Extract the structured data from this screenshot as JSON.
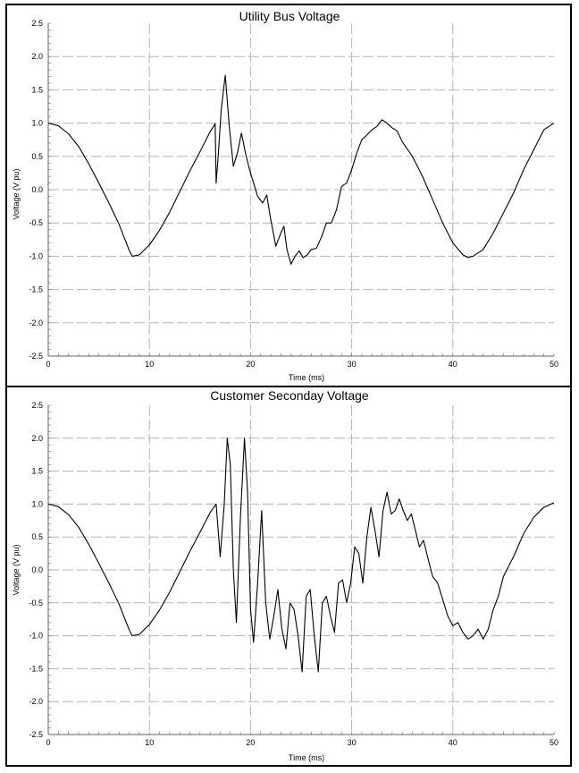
{
  "chart_data": [
    {
      "type": "line",
      "title": "Utility Bus Voltage",
      "xlabel": "Time (ms)",
      "ylabel": "Voltage (V pu)",
      "xlim": [
        0,
        50
      ],
      "ylim": [
        -2.5,
        2.5
      ],
      "xticks": [
        "0",
        "10",
        "20",
        "30",
        "40",
        "50"
      ],
      "yticks": [
        "2.5",
        "2.0",
        "1.5",
        "1.0",
        "0.5",
        "0.0",
        "-0.5",
        "-1.0",
        "-1.5",
        "-2.0",
        "-2.5"
      ],
      "grid": true,
      "line_color": "#000000",
      "series": [
        {
          "x": [
            0,
            1,
            2,
            3,
            4,
            5,
            6,
            7,
            8,
            8.3,
            9,
            10,
            11,
            12,
            13,
            14,
            15,
            16,
            16.5,
            16.6,
            16.8,
            17.1,
            17.5,
            17.9,
            18.3,
            18.7,
            19.1,
            19.5,
            19.9,
            20.3,
            20.7,
            21.2,
            21.6,
            22.0,
            22.5,
            23.0,
            23.3,
            23.6,
            24.0,
            24.4,
            24.8,
            25.2,
            25.6,
            26.0,
            26.5,
            27.0,
            27.5,
            28.0,
            28.5,
            29.0,
            29.5,
            30.0,
            30.5,
            31.0,
            31.5,
            32.0,
            32.5,
            33.0,
            33.5,
            34.0,
            34.5,
            35.0,
            36,
            37,
            38,
            39,
            40,
            41,
            41.5,
            42,
            43,
            44,
            45,
            46,
            47,
            48,
            49,
            50
          ],
          "y": [
            1.0,
            0.96,
            0.84,
            0.65,
            0.39,
            0.1,
            -0.2,
            -0.52,
            -0.91,
            -1.0,
            -0.98,
            -0.83,
            -0.61,
            -0.34,
            -0.03,
            0.28,
            0.57,
            0.87,
            0.99,
            0.1,
            0.5,
            1.2,
            1.72,
            0.95,
            0.35,
            0.55,
            0.85,
            0.55,
            0.3,
            0.1,
            -0.1,
            -0.2,
            -0.08,
            -0.45,
            -0.85,
            -0.65,
            -0.55,
            -0.9,
            -1.12,
            -1.0,
            -0.92,
            -1.02,
            -0.98,
            -0.9,
            -0.88,
            -0.72,
            -0.5,
            -0.5,
            -0.3,
            0.05,
            0.1,
            0.3,
            0.55,
            0.75,
            0.82,
            0.9,
            0.95,
            1.05,
            1.0,
            0.93,
            0.88,
            0.72,
            0.5,
            0.2,
            -0.15,
            -0.5,
            -0.8,
            -0.98,
            -1.02,
            -1.0,
            -0.9,
            -0.65,
            -0.35,
            -0.05,
            0.3,
            0.6,
            0.9,
            1.0
          ]
        }
      ]
    },
    {
      "type": "line",
      "title": "Customer Seconday Voltage",
      "xlabel": "Time (ms)",
      "ylabel": "Voltage (V pu)",
      "xlim": [
        0,
        50
      ],
      "ylim": [
        -2.5,
        2.5
      ],
      "xticks": [
        "0",
        "10",
        "20",
        "30",
        "40",
        "50"
      ],
      "yticks": [
        "2.5",
        "2.0",
        "1.5",
        "1.0",
        "0.5",
        "0.0",
        "-0.5",
        "-1.0",
        "-1.5",
        "-2.0",
        "-2.5"
      ],
      "grid": true,
      "line_color": "#000000",
      "series": [
        {
          "x": [
            0,
            1,
            2,
            3,
            4,
            5,
            6,
            7,
            8,
            8.3,
            9,
            10,
            11,
            12,
            13,
            14,
            15,
            16,
            16.6,
            17.0,
            17.4,
            17.7,
            18.0,
            18.3,
            18.6,
            19.0,
            19.4,
            19.7,
            20.0,
            20.3,
            20.7,
            21.1,
            21.5,
            21.9,
            22.3,
            22.7,
            23.1,
            23.5,
            23.9,
            24.3,
            24.7,
            25.1,
            25.5,
            25.9,
            26.3,
            26.7,
            27.1,
            27.5,
            27.9,
            28.3,
            28.7,
            29.1,
            29.5,
            29.9,
            30.3,
            30.7,
            31.1,
            31.5,
            31.9,
            32.3,
            32.7,
            33.1,
            33.5,
            33.9,
            34.3,
            34.7,
            35.1,
            35.5,
            35.9,
            36.3,
            36.7,
            37.1,
            37.5,
            38,
            38.5,
            39,
            39.5,
            40,
            40.5,
            41,
            41.5,
            42,
            42.5,
            43,
            43.5,
            44,
            44.5,
            45,
            46,
            47,
            48,
            49,
            50
          ],
          "y": [
            1.0,
            0.96,
            0.84,
            0.65,
            0.39,
            0.1,
            -0.2,
            -0.52,
            -0.91,
            -1.0,
            -0.98,
            -0.83,
            -0.61,
            -0.34,
            -0.03,
            0.28,
            0.57,
            0.87,
            1.0,
            0.2,
            1.0,
            2.0,
            1.6,
            0.0,
            -0.8,
            0.8,
            2.0,
            1.2,
            -0.6,
            -1.1,
            -0.2,
            0.9,
            -0.5,
            -1.05,
            -0.7,
            -0.3,
            -0.9,
            -1.2,
            -0.5,
            -0.6,
            -1.0,
            -1.55,
            -0.4,
            -0.3,
            -1.0,
            -1.55,
            -0.5,
            -0.4,
            -0.7,
            -0.95,
            -0.2,
            -0.15,
            -0.5,
            -0.2,
            0.35,
            0.25,
            -0.2,
            0.5,
            0.95,
            0.6,
            0.2,
            0.9,
            1.18,
            0.85,
            0.9,
            1.08,
            0.9,
            0.75,
            0.85,
            0.6,
            0.35,
            0.45,
            0.2,
            -0.1,
            -0.2,
            -0.45,
            -0.7,
            -0.85,
            -0.8,
            -0.95,
            -1.05,
            -1.0,
            -0.9,
            -1.05,
            -0.9,
            -0.6,
            -0.4,
            -0.1,
            0.2,
            0.55,
            0.8,
            0.95,
            1.02
          ]
        }
      ]
    }
  ]
}
